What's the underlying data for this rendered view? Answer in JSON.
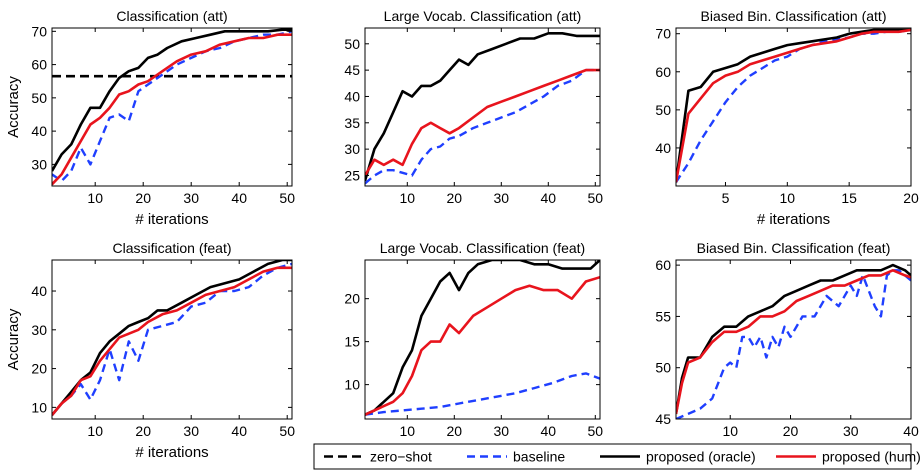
{
  "colors": {
    "zero_shot": "#000000",
    "baseline": "#1f3fff",
    "oracle": "#000000",
    "hum": "#e8141d",
    "axis": "#000000"
  },
  "legend": {
    "placement": "bottom-right",
    "items": [
      {
        "key": "zero_shot",
        "label": "zero−shot",
        "style": "dashed"
      },
      {
        "key": "baseline",
        "label": "baseline",
        "style": "dashed"
      },
      {
        "key": "oracle",
        "label": "proposed (oracle)",
        "style": "solid"
      },
      {
        "key": "hum",
        "label": "proposed (hum)",
        "style": "solid"
      }
    ]
  },
  "chart_data": [
    {
      "type": "line",
      "title": "Classification (att)",
      "xlabel": "# iterations",
      "ylabel": "Accuracy",
      "xlim": [
        1,
        51
      ],
      "ylim": [
        23.5,
        71
      ],
      "xticks": [
        10,
        20,
        30,
        40,
        50
      ],
      "yticks": [
        30,
        40,
        50,
        60,
        70
      ],
      "series": [
        {
          "key": "zero_shot",
          "x": [
            1,
            51
          ],
          "values": [
            56.5,
            56.5
          ]
        },
        {
          "key": "baseline",
          "x": [
            1,
            3,
            5,
            7,
            9,
            11,
            13,
            15,
            17,
            19,
            21,
            24,
            27,
            30,
            33,
            36,
            39,
            42,
            45,
            48,
            51
          ],
          "values": [
            27,
            25,
            28,
            35,
            30,
            37,
            44,
            45,
            43,
            52,
            54,
            57,
            60,
            62,
            64,
            65,
            67,
            68,
            69,
            69,
            70
          ]
        },
        {
          "key": "oracle",
          "x": [
            1,
            3,
            5,
            7,
            9,
            11,
            13,
            15,
            17,
            19,
            21,
            23,
            25,
            28,
            31,
            34,
            37,
            40,
            43,
            46,
            49,
            51
          ],
          "values": [
            28,
            33,
            36,
            42,
            47,
            47,
            52,
            56,
            58,
            59,
            62,
            63,
            65,
            67,
            68,
            69,
            70,
            70,
            70,
            70,
            70.5,
            70.5
          ]
        },
        {
          "key": "hum",
          "x": [
            1,
            3,
            5,
            7,
            9,
            11,
            13,
            15,
            17,
            19,
            21,
            24,
            27,
            30,
            33,
            36,
            39,
            42,
            45,
            48,
            51
          ],
          "values": [
            24,
            27,
            32,
            37,
            42,
            44,
            47,
            51,
            52,
            54,
            55,
            58,
            61,
            63,
            64,
            66,
            67,
            68,
            68,
            69,
            69
          ]
        }
      ]
    },
    {
      "type": "line",
      "title": "Large Vocab. Classification (att)",
      "xlabel": "",
      "ylabel": "",
      "xlim": [
        1,
        51
      ],
      "ylim": [
        23,
        53
      ],
      "xticks": [
        10,
        20,
        30,
        40,
        50
      ],
      "yticks": [
        25,
        30,
        35,
        40,
        45,
        50
      ],
      "series": [
        {
          "key": "baseline",
          "x": [
            1,
            3,
            5,
            7,
            9,
            11,
            13,
            15,
            17,
            19,
            21,
            24,
            27,
            30,
            33,
            36,
            39,
            42,
            45,
            48,
            51
          ],
          "values": [
            23.5,
            25,
            26,
            26,
            25.5,
            25,
            28,
            30,
            30.5,
            32,
            32.5,
            34,
            35,
            36,
            37,
            38.5,
            40,
            42,
            43,
            45,
            45
          ]
        },
        {
          "key": "oracle",
          "x": [
            1,
            3,
            5,
            7,
            9,
            11,
            13,
            15,
            17,
            19,
            21,
            23,
            25,
            28,
            31,
            34,
            37,
            40,
            43,
            46,
            49,
            51
          ],
          "values": [
            24,
            30,
            33,
            37,
            41,
            40,
            42,
            42,
            43,
            45,
            47,
            46,
            48,
            49,
            50,
            51,
            51,
            52,
            52,
            51.5,
            51.5,
            51.5
          ]
        },
        {
          "key": "hum",
          "x": [
            1,
            3,
            5,
            7,
            9,
            11,
            13,
            15,
            17,
            19,
            21,
            24,
            27,
            30,
            33,
            36,
            39,
            42,
            45,
            48,
            51
          ],
          "values": [
            25,
            28,
            27,
            28,
            27,
            31,
            34,
            35,
            34,
            33,
            34,
            36,
            38,
            39,
            40,
            41,
            42,
            43,
            44,
            45,
            45
          ]
        }
      ]
    },
    {
      "type": "line",
      "title": "Biased Bin. Classification (att)",
      "xlabel": "# iterations",
      "ylabel": "",
      "xlim": [
        1,
        20
      ],
      "ylim": [
        30,
        71.5
      ],
      "xticks": [
        5,
        10,
        15,
        20
      ],
      "yticks": [
        40,
        50,
        60,
        70
      ],
      "series": [
        {
          "key": "baseline",
          "x": [
            1,
            2,
            3,
            4,
            5,
            6,
            7,
            8,
            9,
            10,
            11,
            12,
            13,
            14,
            15,
            16,
            17,
            18,
            19,
            20
          ],
          "values": [
            31,
            36,
            42,
            47,
            52,
            56,
            59,
            61,
            63,
            64,
            66,
            67,
            68,
            68.5,
            69,
            70,
            70,
            70.5,
            70.5,
            71
          ]
        },
        {
          "key": "oracle",
          "x": [
            1,
            2,
            3,
            4,
            5,
            6,
            7,
            8,
            9,
            10,
            11,
            12,
            13,
            14,
            15,
            16,
            17,
            18,
            19,
            20
          ],
          "values": [
            31,
            55,
            56,
            60,
            61,
            62,
            64,
            65,
            66,
            67,
            67.5,
            68,
            68.5,
            69,
            70,
            70.5,
            71,
            71,
            71,
            71
          ]
        },
        {
          "key": "hum",
          "x": [
            1,
            2,
            3,
            4,
            5,
            6,
            7,
            8,
            9,
            10,
            11,
            12,
            13,
            14,
            15,
            16,
            17,
            18,
            19,
            20
          ],
          "values": [
            31,
            49,
            53,
            57,
            59,
            60,
            62,
            63,
            64,
            65,
            66,
            67,
            67.5,
            68,
            69,
            70,
            70.5,
            70.5,
            70.5,
            71
          ]
        }
      ]
    },
    {
      "type": "line",
      "title": "Classification (feat)",
      "xlabel": "# iterations",
      "ylabel": "Accuracy",
      "xlim": [
        1,
        51
      ],
      "ylim": [
        7,
        48
      ],
      "xticks": [
        10,
        20,
        30,
        40,
        50
      ],
      "yticks": [
        10,
        20,
        30,
        40
      ],
      "series": [
        {
          "key": "baseline",
          "x": [
            1,
            3,
            5,
            7,
            9,
            11,
            13,
            15,
            17,
            19,
            21,
            24,
            27,
            30,
            33,
            36,
            39,
            42,
            45,
            48,
            51
          ],
          "values": [
            8,
            11,
            13,
            16,
            12,
            17,
            25,
            17,
            27,
            22,
            30,
            31,
            32,
            36,
            37,
            40,
            40,
            41,
            44,
            46,
            47
          ]
        },
        {
          "key": "oracle",
          "x": [
            1,
            3,
            5,
            7,
            9,
            11,
            13,
            15,
            17,
            19,
            21,
            23,
            25,
            28,
            31,
            34,
            37,
            40,
            43,
            46,
            49,
            51
          ],
          "values": [
            8,
            11,
            14,
            17,
            19,
            24,
            27,
            29,
            31,
            32,
            33,
            35,
            35,
            37,
            39,
            41,
            42,
            43,
            45,
            47,
            48,
            48
          ]
        },
        {
          "key": "hum",
          "x": [
            1,
            3,
            5,
            7,
            9,
            11,
            13,
            15,
            17,
            19,
            21,
            24,
            27,
            30,
            33,
            36,
            39,
            42,
            45,
            48,
            51
          ],
          "values": [
            8,
            11,
            13,
            17,
            18,
            22,
            25,
            28,
            29,
            30,
            32,
            34,
            35,
            37,
            39,
            40,
            41,
            43,
            45,
            46,
            46
          ]
        }
      ]
    },
    {
      "type": "line",
      "title": "Large Vocab. Classification (feat)",
      "xlabel": "",
      "ylabel": "",
      "xlim": [
        1,
        51
      ],
      "ylim": [
        6,
        24.5
      ],
      "xticks": [
        10,
        20,
        30,
        40,
        50
      ],
      "yticks": [
        10,
        15,
        20
      ],
      "series": [
        {
          "key": "baseline",
          "x": [
            1,
            5,
            9,
            13,
            17,
            21,
            25,
            29,
            33,
            37,
            41,
            45,
            48,
            51
          ],
          "values": [
            6.5,
            6.8,
            7,
            7.2,
            7.4,
            7.8,
            8.2,
            8.6,
            9,
            9.6,
            10.2,
            11,
            11.3,
            10.7
          ]
        },
        {
          "key": "oracle",
          "x": [
            1,
            3,
            5,
            7,
            9,
            11,
            13,
            15,
            17,
            19,
            21,
            23,
            25,
            28,
            31,
            34,
            37,
            40,
            43,
            46,
            49,
            51
          ],
          "values": [
            6.5,
            7,
            8,
            9,
            12,
            14,
            18,
            20,
            22,
            23,
            21,
            23,
            24,
            24.5,
            24.5,
            24.5,
            24,
            24,
            23.5,
            23.5,
            23.5,
            24.5
          ]
        },
        {
          "key": "hum",
          "x": [
            1,
            3,
            5,
            7,
            9,
            11,
            13,
            15,
            17,
            19,
            21,
            24,
            27,
            30,
            33,
            36,
            39,
            42,
            45,
            48,
            51
          ],
          "values": [
            6.5,
            7,
            7.5,
            8,
            9,
            11,
            14,
            15,
            15,
            17,
            16,
            18,
            19,
            20,
            21,
            21.5,
            21,
            21,
            20,
            22,
            22.5
          ]
        }
      ]
    },
    {
      "type": "line",
      "title": "Biased Bin. Classification (feat)",
      "xlabel": "",
      "ylabel": "",
      "xlim": [
        1,
        40
      ],
      "ylim": [
        45,
        60.5
      ],
      "xticks": [
        10,
        20,
        30,
        40
      ],
      "yticks": [
        45,
        50,
        55,
        60
      ],
      "series": [
        {
          "key": "baseline",
          "x": [
            1,
            3,
            5,
            7,
            9,
            10,
            11,
            12,
            13,
            14,
            15,
            16,
            17,
            18,
            19,
            20,
            22,
            24,
            26,
            28,
            30,
            31,
            32,
            34,
            35,
            36,
            37,
            38,
            40
          ],
          "values": [
            45,
            45.5,
            46,
            47,
            50,
            50.5,
            50,
            53,
            53,
            52,
            53,
            51,
            53,
            52,
            54,
            53,
            55,
            55,
            57,
            56,
            58,
            57,
            59,
            56,
            55,
            59,
            59.5,
            59.5,
            58.5
          ]
        },
        {
          "key": "oracle",
          "x": [
            1,
            2,
            3,
            5,
            7,
            9,
            11,
            13,
            15,
            17,
            19,
            21,
            23,
            25,
            27,
            29,
            31,
            33,
            35,
            37,
            39,
            40
          ],
          "values": [
            45.5,
            49,
            51,
            51,
            53,
            54,
            54,
            55,
            55.5,
            56,
            57,
            57.5,
            58,
            58.5,
            58.5,
            59,
            59.5,
            59.5,
            59.5,
            60,
            59.5,
            59
          ]
        },
        {
          "key": "hum",
          "x": [
            1,
            2,
            3,
            5,
            7,
            9,
            11,
            13,
            15,
            17,
            19,
            21,
            23,
            25,
            27,
            29,
            31,
            33,
            35,
            37,
            39,
            40
          ],
          "values": [
            45.5,
            48.5,
            50.5,
            51,
            52.5,
            53.5,
            53.5,
            54,
            55,
            55,
            55.5,
            56.5,
            57,
            57.5,
            58,
            58,
            58.5,
            59,
            59,
            59.5,
            59,
            58.8
          ]
        }
      ]
    }
  ]
}
